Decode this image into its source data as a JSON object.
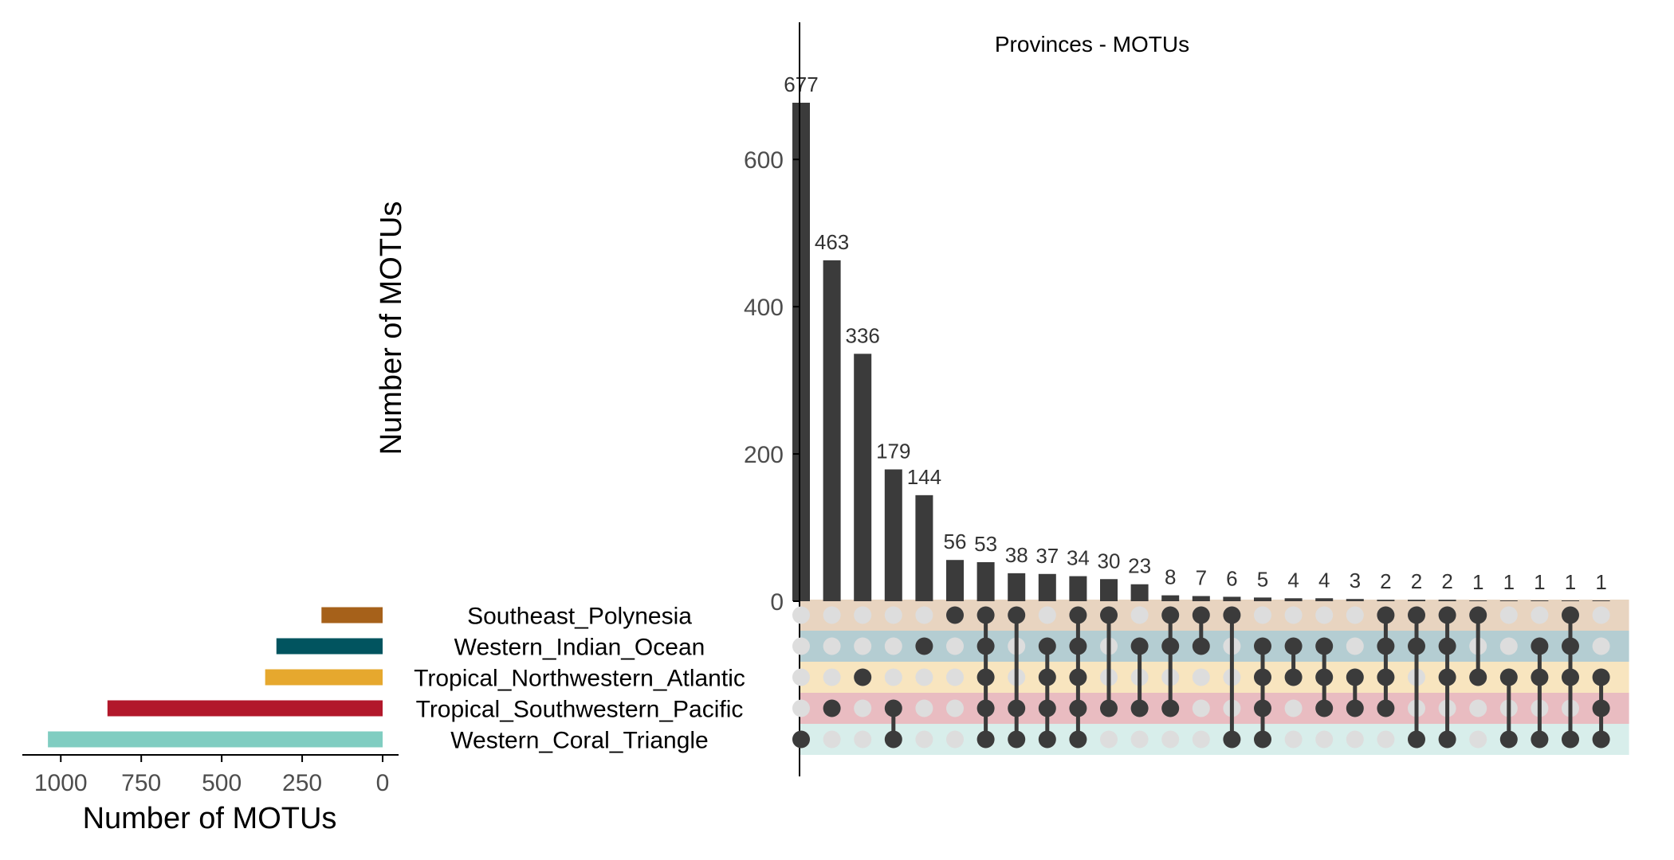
{
  "chart_data": {
    "type": "bar",
    "title": "Provinces - MOTUs",
    "intersection_axis": {
      "ylabel": "Number of MOTUs",
      "ticks": [
        0,
        200,
        400,
        600
      ],
      "ylim": [
        0,
        730
      ]
    },
    "set_size_axis": {
      "xlabel": "Number of MOTUs",
      "ticks": [
        1000,
        750,
        500,
        250,
        0
      ],
      "xlim": [
        1070,
        0
      ]
    },
    "sets": [
      {
        "name": "Southeast_Polynesia",
        "size": 190,
        "color": "#A6611A",
        "row_color": "#E8D4C0"
      },
      {
        "name": "Western_Indian_Ocean",
        "size": 330,
        "color": "#01545F",
        "row_color": "#B4CDD2"
      },
      {
        "name": "Tropical_Northwestern_Atlantic",
        "size": 365,
        "color": "#E6A82E",
        "row_color": "#F8E5BF"
      },
      {
        "name": "Tropical_Southwestern_Pacific",
        "size": 855,
        "color": "#B2182B",
        "row_color": "#E9BCC1"
      },
      {
        "name": "Western_Coral_Triangle",
        "size": 1040,
        "color": "#80CDC1",
        "row_color": "#D8EEEB"
      }
    ],
    "intersections": [
      {
        "value": 677,
        "label": "677",
        "members": [
          4
        ]
      },
      {
        "value": 463,
        "label": "463",
        "members": [
          3
        ]
      },
      {
        "value": 336,
        "label": "336",
        "members": [
          2
        ]
      },
      {
        "value": 179,
        "label": "179",
        "members": [
          3,
          4
        ]
      },
      {
        "value": 144,
        "label": "144",
        "members": [
          1
        ]
      },
      {
        "value": 56,
        "label": "56",
        "members": [
          0
        ]
      },
      {
        "value": 53,
        "label": "53",
        "members": [
          0,
          1,
          2,
          3,
          4
        ]
      },
      {
        "value": 38,
        "label": "38",
        "members": [
          0,
          3,
          4
        ]
      },
      {
        "value": 37,
        "label": "37",
        "members": [
          1,
          2,
          3,
          4
        ]
      },
      {
        "value": 34,
        "label": "34",
        "members": [
          0,
          1,
          2,
          3,
          4
        ]
      },
      {
        "value": 30,
        "label": "30",
        "members": [
          0,
          3
        ]
      },
      {
        "value": 23,
        "label": "23",
        "members": [
          1,
          3
        ]
      },
      {
        "value": 8,
        "label": "8",
        "members": [
          0,
          1,
          3
        ]
      },
      {
        "value": 7,
        "label": "7",
        "members": [
          0,
          1
        ]
      },
      {
        "value": 6,
        "label": "6",
        "members": [
          0,
          4
        ]
      },
      {
        "value": 5,
        "label": "5",
        "members": [
          1,
          2,
          3,
          4
        ]
      },
      {
        "value": 4,
        "label": "4",
        "members": [
          1,
          2
        ]
      },
      {
        "value": 4,
        "label": "4",
        "members": [
          1,
          2,
          3
        ]
      },
      {
        "value": 3,
        "label": "3",
        "members": [
          2,
          3
        ]
      },
      {
        "value": 2,
        "label": "2",
        "members": [
          0,
          1,
          2,
          3
        ]
      },
      {
        "value": 2,
        "label": "2",
        "members": [
          0,
          1,
          4
        ]
      },
      {
        "value": 2,
        "label": "2",
        "members": [
          0,
          1,
          2,
          4
        ]
      },
      {
        "value": 1,
        "label": "1",
        "members": [
          0,
          2
        ]
      },
      {
        "value": 1,
        "label": "1",
        "members": [
          2,
          4
        ]
      },
      {
        "value": 1,
        "label": "1",
        "members": [
          1,
          2,
          4
        ]
      },
      {
        "value": 1,
        "label": "1",
        "members": [
          0,
          1,
          2,
          4
        ]
      },
      {
        "value": 1,
        "label": "1",
        "members": [
          2,
          3,
          4
        ]
      }
    ],
    "bar_color": "#3b3b3b",
    "inactive_dot_color": "#dddddd",
    "grid": false
  }
}
